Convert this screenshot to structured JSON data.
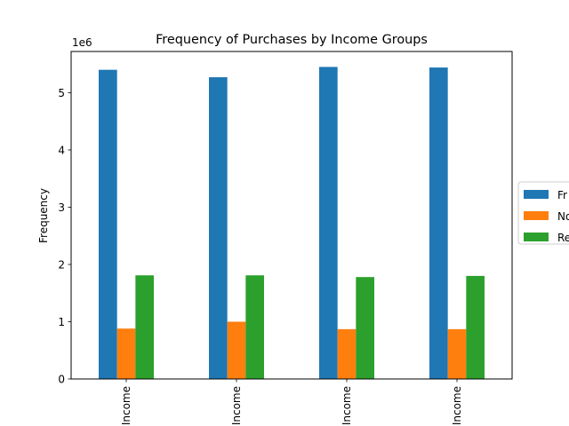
{
  "chart_data": {
    "type": "bar",
    "title": "Frequency of Purchases by Income Groups",
    "xlabel": "",
    "ylabel": "Frequency",
    "offset_label": "1e6",
    "categories": [
      "Income",
      "Income",
      "Income",
      "Income"
    ],
    "ylim": [
      0,
      5.72
    ],
    "yticks": [
      0,
      1,
      2,
      3,
      4,
      5
    ],
    "ytick_labels": [
      "0",
      "1",
      "2",
      "3",
      "4",
      "5"
    ],
    "grid": false,
    "legend_position": "right, clipped",
    "series": [
      {
        "name": "Fr",
        "color": "#1f77b4",
        "values": [
          5.4,
          5.27,
          5.45,
          5.44
        ]
      },
      {
        "name": "No",
        "color": "#ff7f0e",
        "values": [
          0.88,
          1.0,
          0.87,
          0.87
        ]
      },
      {
        "name": "Re",
        "color": "#2ca02c",
        "values": [
          1.81,
          1.81,
          1.78,
          1.8
        ]
      }
    ]
  }
}
